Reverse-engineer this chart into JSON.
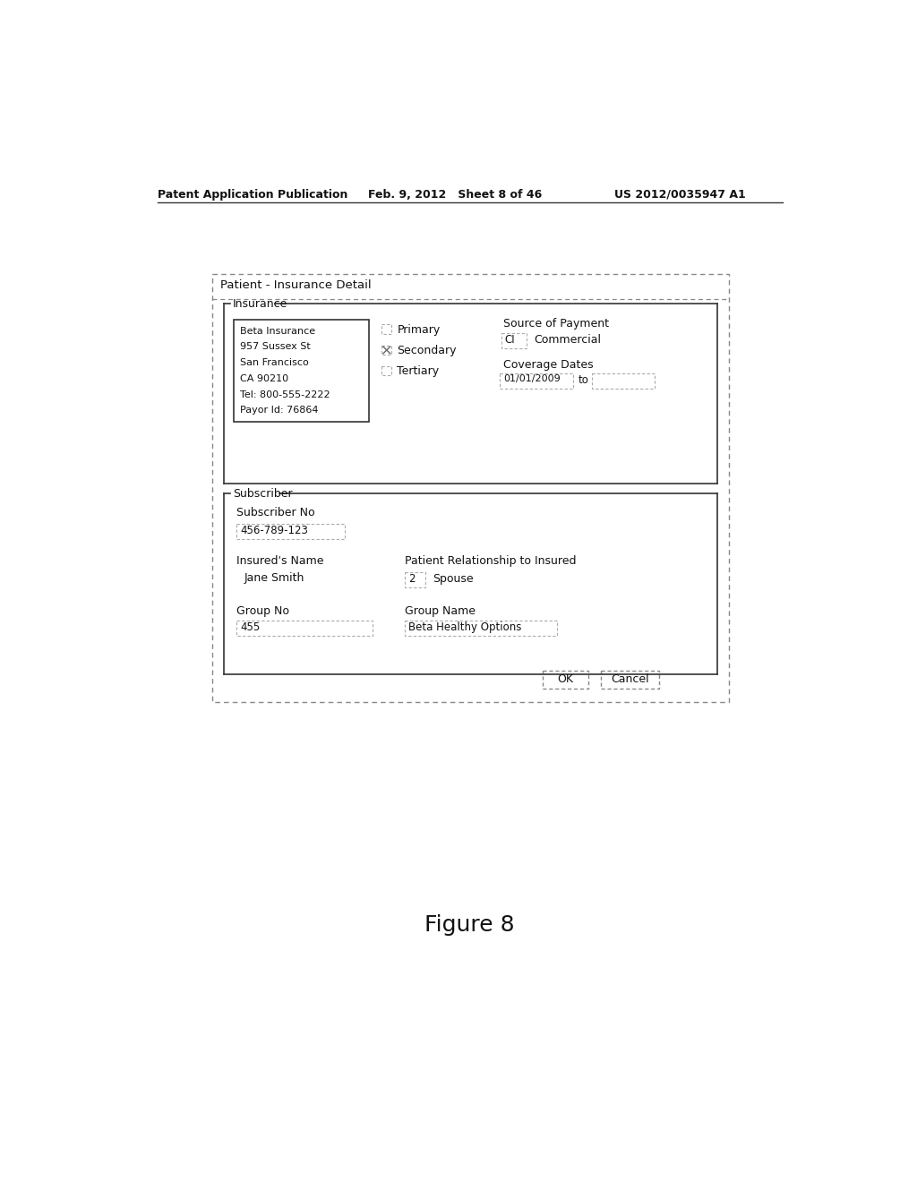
{
  "bg_color": "#ffffff",
  "page_width": 10.24,
  "page_height": 13.2,
  "header_left": "Patent Application Publication",
  "header_center": "Feb. 9, 2012   Sheet 8 of 46",
  "header_right": "US 2012/0035947 A1",
  "figure_label": "Figure 8",
  "outer_box_title": "Patient - Insurance Detail",
  "insurance_group_title": "Insurance",
  "subscriber_group_title": "Subscriber",
  "insurance_address_lines": [
    "Beta Insurance",
    "957 Sussex St",
    "San Francisco",
    "CA 90210",
    "Tel: 800-555-2222",
    "Payor Id: 76864"
  ],
  "radio_labels": [
    "Primary",
    "Secondary",
    "Tertiary"
  ],
  "radio_checked": 1,
  "source_of_payment_label": "Source of Payment",
  "ci_label": "CI",
  "commercial_label": "Commercial",
  "coverage_dates_label": "Coverage Dates",
  "coverage_from": "01/01/2009",
  "to_label": "to",
  "subscriber_no_label": "Subscriber No",
  "subscriber_no_value": "456-789-123",
  "insured_name_label": "Insured's Name",
  "insured_name_value": "Jane Smith",
  "patient_rel_label": "Patient Relationship to Insured",
  "patient_rel_code": "2",
  "patient_rel_value": "Spouse",
  "group_no_label": "Group No",
  "group_no_value": "455",
  "group_name_label": "Group Name",
  "group_name_value": "Beta Healthy Options",
  "ok_button": "OK",
  "cancel_button": "Cancel"
}
